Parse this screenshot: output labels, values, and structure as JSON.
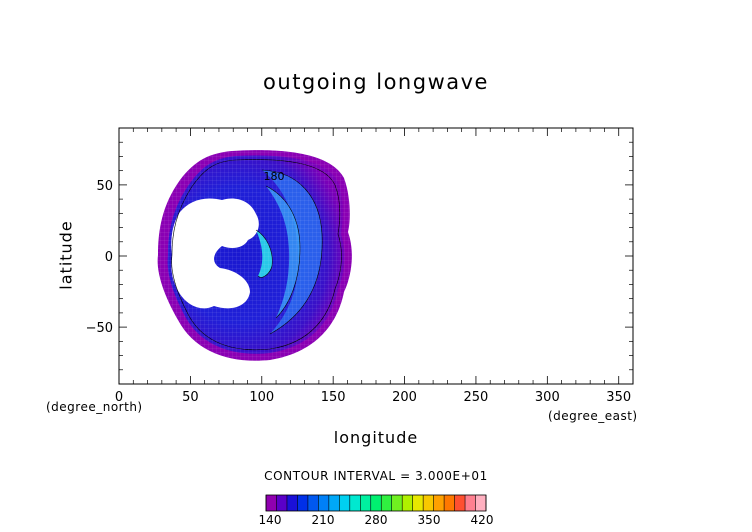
{
  "chart_data": {
    "type": "heatmap",
    "title": "outgoing longwave",
    "xlabel": "longitude",
    "ylabel": "latitude",
    "x_unit": "(degree_east)",
    "y_unit": "(degree_north)",
    "xlim": [
      0,
      360
    ],
    "ylim": [
      -90,
      90
    ],
    "x_ticks": [
      0,
      50,
      100,
      150,
      200,
      250,
      300,
      350
    ],
    "y_ticks": [
      -50,
      0,
      50
    ],
    "contour_label": "180",
    "colorbar": {
      "caption": "CONTOUR INTERVAL = 3.000E+01",
      "labels": [
        "140",
        "210",
        "280",
        "350",
        "420"
      ],
      "range": [
        140,
        420
      ],
      "colors": [
        "#9000b0",
        "#5a00c8",
        "#1a10d8",
        "#0030e8",
        "#0058f0",
        "#0080f8",
        "#00a8f8",
        "#00d0f0",
        "#00e8d0",
        "#00f0a0",
        "#00f070",
        "#30f040",
        "#70f020",
        "#b0f000",
        "#e8e800",
        "#f8c800",
        "#ffa000",
        "#ff7800",
        "#ff5030",
        "#ff8090",
        "#ffb0c0"
      ]
    },
    "field": {
      "domain_lon": [
        28,
        158
      ],
      "domain_lat": [
        -72,
        72
      ],
      "approx_values": [
        {
          "region": "outer rim",
          "olr": 140
        },
        {
          "region": "interior",
          "olr": 160
        },
        {
          "region": "band near 110E",
          "olr": 200
        },
        {
          "region": "core near 105E, 0N",
          "olr": 240
        }
      ],
      "missing_region": {
        "lon": [
          35,
          100
        ],
        "lat": [
          -40,
          40
        ]
      }
    },
    "grid": false
  }
}
